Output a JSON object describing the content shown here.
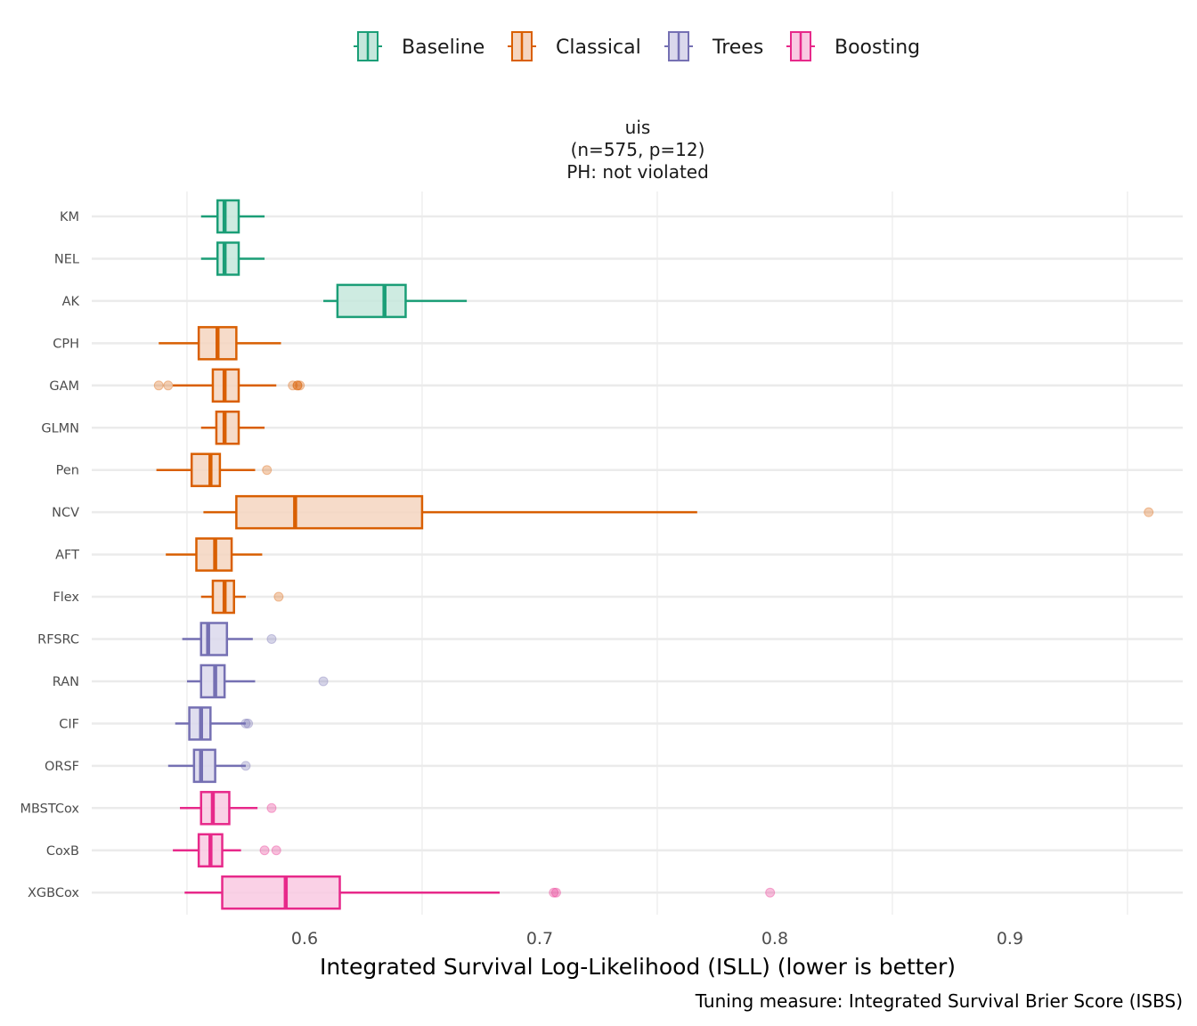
{
  "chart_data": {
    "type": "boxplot",
    "orientation": "horizontal",
    "title": [
      "uis",
      "(n=575, p=12)",
      "PH: not violated"
    ],
    "xlabel": "Integrated Survival Log-Likelihood (ISLL) (lower is better)",
    "ylabel": "",
    "caption": "Tuning measure: Integrated Survival Brier Score (ISBS)",
    "xlim": [
      0.5095,
      0.9735
    ],
    "xticks": [
      0.6,
      0.7,
      0.8,
      0.9
    ],
    "xtick_labels": [
      "0.6",
      "0.7",
      "0.8",
      "0.9"
    ],
    "grid": true,
    "legend_position": "top",
    "legend": [
      {
        "name": "Baseline",
        "stroke": "#1b9e77",
        "fill": "#c5e7dc"
      },
      {
        "name": "Classical",
        "stroke": "#d95f02",
        "fill": "#f5d5bf"
      },
      {
        "name": "Trees",
        "stroke": "#7570b3",
        "fill": "#dad8ec"
      },
      {
        "name": "Boosting",
        "stroke": "#e7298a",
        "fill": "#f9c9e2"
      }
    ],
    "categories": [
      "KM",
      "NEL",
      "AK",
      "CPH",
      "GAM",
      "GLMN",
      "Pen",
      "NCV",
      "AFT",
      "Flex",
      "RFSRC",
      "RAN",
      "CIF",
      "ORSF",
      "MBSTCox",
      "CoxB",
      "XGBCox"
    ],
    "boxes": [
      {
        "label": "KM",
        "group": "Baseline",
        "whisker_low": 0.556,
        "q1": 0.563,
        "median": 0.566,
        "q3": 0.572,
        "whisker_high": 0.583,
        "outliers": []
      },
      {
        "label": "NEL",
        "group": "Baseline",
        "whisker_low": 0.556,
        "q1": 0.563,
        "median": 0.566,
        "q3": 0.572,
        "whisker_high": 0.583,
        "outliers": []
      },
      {
        "label": "AK",
        "group": "Baseline",
        "whisker_low": 0.608,
        "q1": 0.614,
        "median": 0.634,
        "q3": 0.643,
        "whisker_high": 0.669,
        "outliers": []
      },
      {
        "label": "CPH",
        "group": "Classical",
        "whisker_low": 0.538,
        "q1": 0.555,
        "median": 0.563,
        "q3": 0.571,
        "whisker_high": 0.59,
        "outliers": []
      },
      {
        "label": "GAM",
        "group": "Classical",
        "whisker_low": 0.544,
        "q1": 0.561,
        "median": 0.566,
        "q3": 0.572,
        "whisker_high": 0.588,
        "outliers": [
          0.538,
          0.542,
          0.595,
          0.597,
          0.597,
          0.598
        ]
      },
      {
        "label": "GLMN",
        "group": "Classical",
        "whisker_low": 0.556,
        "q1": 0.5625,
        "median": 0.566,
        "q3": 0.572,
        "whisker_high": 0.583,
        "outliers": []
      },
      {
        "label": "Pen",
        "group": "Classical",
        "whisker_low": 0.537,
        "q1": 0.552,
        "median": 0.56,
        "q3": 0.564,
        "whisker_high": 0.579,
        "outliers": [
          0.584
        ]
      },
      {
        "label": "NCV",
        "group": "Classical",
        "whisker_low": 0.557,
        "q1": 0.571,
        "median": 0.596,
        "q3": 0.65,
        "whisker_high": 0.767,
        "outliers": [
          0.959
        ]
      },
      {
        "label": "AFT",
        "group": "Classical",
        "whisker_low": 0.541,
        "q1": 0.554,
        "median": 0.562,
        "q3": 0.569,
        "whisker_high": 0.582,
        "outliers": []
      },
      {
        "label": "Flex",
        "group": "Classical",
        "whisker_low": 0.556,
        "q1": 0.561,
        "median": 0.566,
        "q3": 0.57,
        "whisker_high": 0.575,
        "outliers": [
          0.589
        ]
      },
      {
        "label": "RFSRC",
        "group": "Trees",
        "whisker_low": 0.548,
        "q1": 0.556,
        "median": 0.559,
        "q3": 0.567,
        "whisker_high": 0.578,
        "outliers": [
          0.586
        ]
      },
      {
        "label": "RAN",
        "group": "Trees",
        "whisker_low": 0.55,
        "q1": 0.556,
        "median": 0.562,
        "q3": 0.566,
        "whisker_high": 0.579,
        "outliers": [
          0.608
        ]
      },
      {
        "label": "CIF",
        "group": "Trees",
        "whisker_low": 0.545,
        "q1": 0.551,
        "median": 0.556,
        "q3": 0.56,
        "whisker_high": 0.575,
        "outliers": [
          0.575,
          0.576
        ]
      },
      {
        "label": "ORSF",
        "group": "Trees",
        "whisker_low": 0.542,
        "q1": 0.553,
        "median": 0.556,
        "q3": 0.562,
        "whisker_high": 0.575,
        "outliers": [
          0.575
        ]
      },
      {
        "label": "MBSTCox",
        "group": "Boosting",
        "whisker_low": 0.547,
        "q1": 0.556,
        "median": 0.561,
        "q3": 0.568,
        "whisker_high": 0.58,
        "outliers": [
          0.586
        ]
      },
      {
        "label": "CoxB",
        "group": "Boosting",
        "whisker_low": 0.544,
        "q1": 0.555,
        "median": 0.56,
        "q3": 0.565,
        "whisker_high": 0.573,
        "outliers": [
          0.583,
          0.588
        ]
      },
      {
        "label": "XGBCox",
        "group": "Boosting",
        "whisker_low": 0.549,
        "q1": 0.565,
        "median": 0.592,
        "q3": 0.615,
        "whisker_high": 0.683,
        "outliers": [
          0.706,
          0.707,
          0.798
        ]
      }
    ]
  }
}
